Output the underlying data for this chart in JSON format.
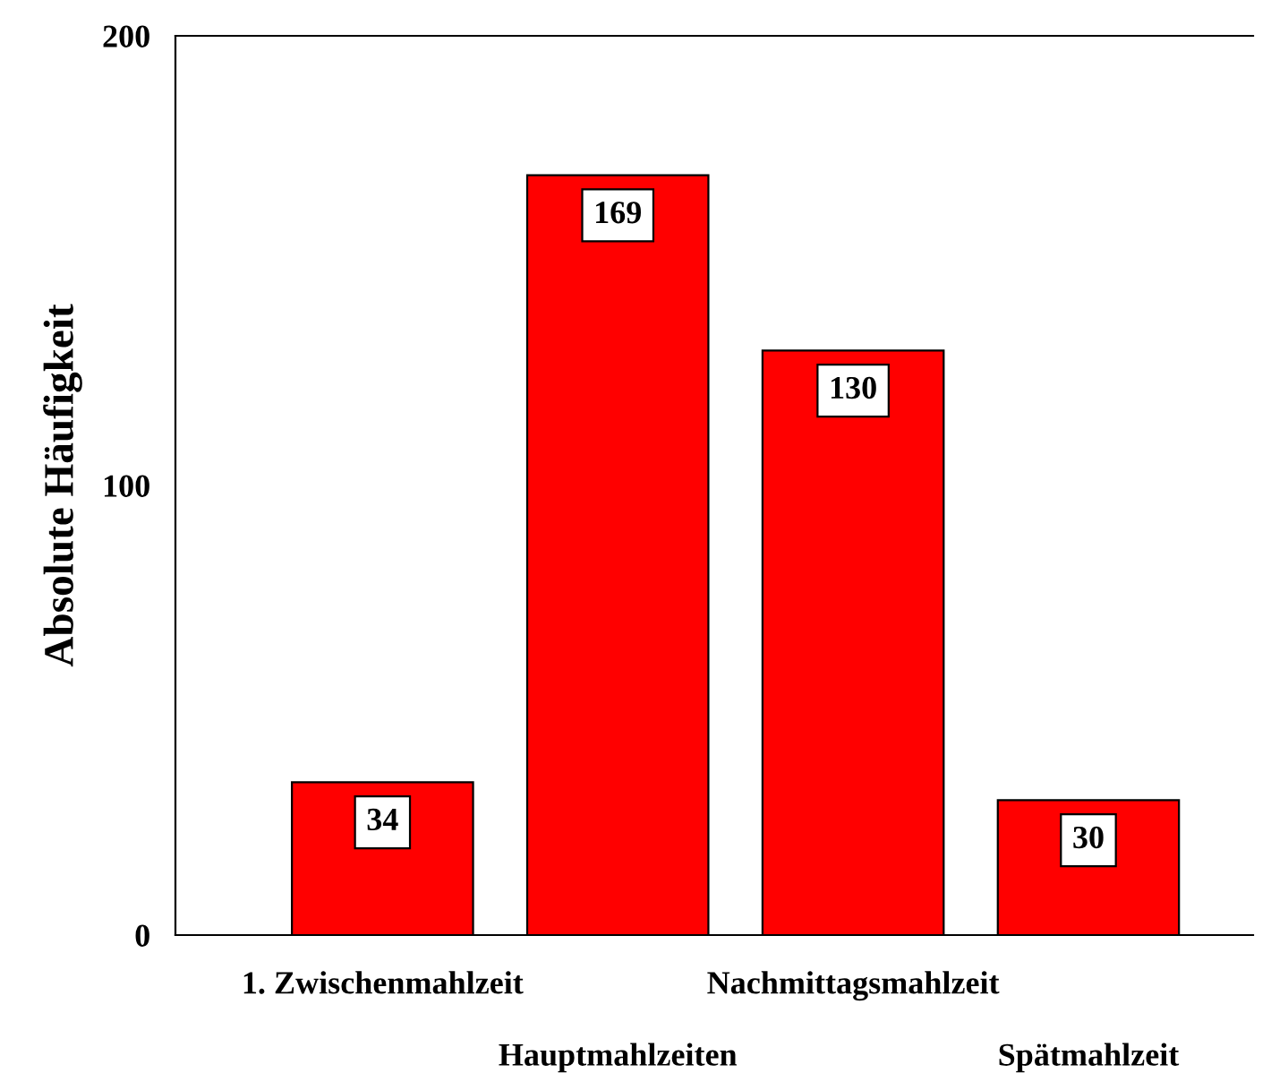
{
  "chart_data": {
    "type": "bar",
    "ylabel": "Absolute Häufigkeit",
    "categories": [
      "1. Zwischenmahlzeit",
      "Hauptmahlzeiten",
      "Nachmittagsmahlzeit",
      "Spätmahlzeit"
    ],
    "values": [
      34,
      169,
      130,
      30
    ],
    "color": "#ff0000",
    "data_labels": true,
    "ylim": [
      0,
      200
    ],
    "yticks": [
      0,
      100,
      200
    ],
    "grid": false
  }
}
